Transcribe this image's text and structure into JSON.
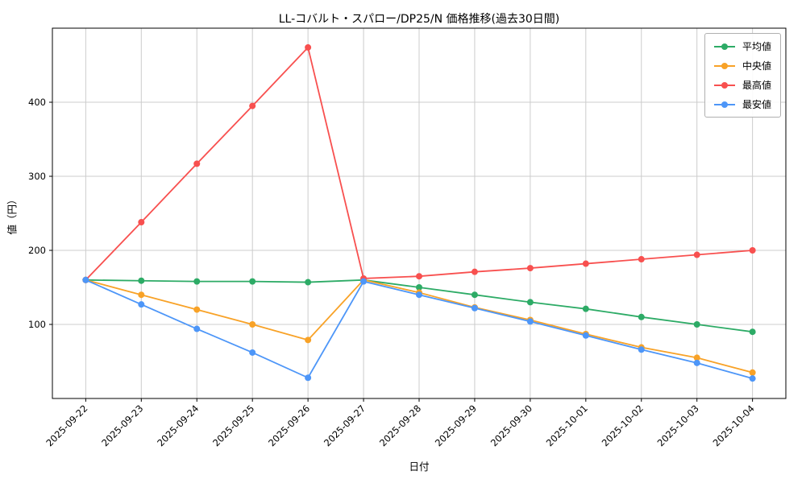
{
  "chart_data": {
    "type": "line",
    "title": "LL-コバルト・スパロー/DP25/N 価格推移(過去30日間)",
    "xlabel": "日付",
    "ylabel": "値（円）",
    "x": [
      "2025-09-22",
      "2025-09-23",
      "2025-09-24",
      "2025-09-25",
      "2025-09-26",
      "2025-09-27",
      "2025-09-28",
      "2025-09-29",
      "2025-09-30",
      "2025-10-01",
      "2025-10-02",
      "2025-10-03",
      "2025-10-04"
    ],
    "yticks": [
      100,
      200,
      300,
      400
    ],
    "ylim": [
      0,
      500
    ],
    "grid": true,
    "legend_position": "upper right",
    "series": [
      {
        "name": "平均値",
        "color": "#2dab66",
        "values": [
          160,
          159,
          158,
          158,
          157,
          160,
          150,
          140,
          130,
          121,
          110,
          100,
          90
        ]
      },
      {
        "name": "中央値",
        "color": "#f8a227",
        "values": [
          160,
          140,
          120,
          100,
          79,
          160,
          143,
          123,
          106,
          87,
          69,
          55,
          35
        ]
      },
      {
        "name": "最高値",
        "color": "#f8504f",
        "values": [
          160,
          238,
          317,
          395,
          474,
          162,
          165,
          171,
          176,
          182,
          188,
          194,
          200
        ]
      },
      {
        "name": "最安値",
        "color": "#4d96f8",
        "values": [
          160,
          127,
          94,
          62,
          28,
          158,
          140,
          122,
          104,
          85,
          66,
          48,
          27
        ]
      }
    ]
  }
}
